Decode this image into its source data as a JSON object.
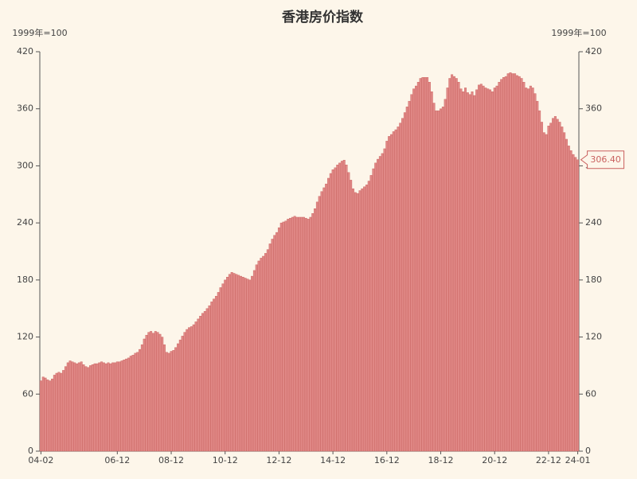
{
  "chart_data": {
    "type": "bar",
    "title": "香港房价指数",
    "y_label": "1999年=100",
    "y2_label": "1999年=100",
    "categories": [
      "04-02",
      null,
      null,
      null,
      null,
      null,
      null,
      null,
      null,
      null,
      null,
      null,
      null,
      null,
      null,
      null,
      null,
      null,
      null,
      null,
      null,
      null,
      null,
      null,
      null,
      null,
      null,
      null,
      null,
      null,
      null,
      null,
      null,
      null,
      "06-12",
      null,
      null,
      null,
      null,
      null,
      null,
      null,
      null,
      null,
      null,
      null,
      null,
      null,
      null,
      null,
      null,
      null,
      null,
      null,
      null,
      null,
      null,
      null,
      "08-12",
      null,
      null,
      null,
      null,
      null,
      null,
      null,
      null,
      null,
      null,
      null,
      null,
      null,
      null,
      null,
      null,
      null,
      null,
      null,
      null,
      null,
      null,
      null,
      "10-12",
      null,
      null,
      null,
      null,
      null,
      null,
      null,
      null,
      null,
      null,
      null,
      null,
      null,
      null,
      null,
      null,
      null,
      null,
      null,
      null,
      null,
      null,
      null,
      "12-12",
      null,
      null,
      null,
      null,
      null,
      null,
      null,
      null,
      null,
      null,
      null,
      null,
      null,
      null,
      null,
      null,
      null,
      null,
      null,
      null,
      null,
      null,
      null,
      "14-12",
      null,
      null,
      null,
      null,
      null,
      null,
      null,
      null,
      null,
      null,
      null,
      null,
      null,
      null,
      null,
      null,
      null,
      null,
      null,
      null,
      null,
      null,
      null,
      "16-12",
      null,
      null,
      null,
      null,
      null,
      null,
      null,
      null,
      null,
      null,
      null,
      null,
      null,
      null,
      null,
      null,
      null,
      null,
      null,
      null,
      null,
      null,
      null,
      "18-12",
      null,
      null,
      null,
      null,
      null,
      null,
      null,
      null,
      null,
      null,
      null,
      null,
      null,
      null,
      null,
      null,
      null,
      null,
      null,
      null,
      null,
      null,
      null,
      "20-12",
      null,
      null,
      null,
      null,
      null,
      null,
      null,
      null,
      null,
      null,
      null,
      null,
      null,
      null,
      null,
      null,
      null,
      null,
      null,
      null,
      null,
      null,
      null,
      "22-12",
      null,
      null,
      null,
      null,
      null,
      null,
      null,
      null,
      null,
      null,
      null,
      null,
      "24-01"
    ],
    "values": [
      74,
      78,
      77,
      75,
      74,
      76,
      80,
      82,
      83,
      82,
      85,
      89,
      93,
      95,
      94,
      93,
      92,
      93,
      94,
      91,
      89,
      88,
      90,
      91,
      92,
      92,
      93,
      94,
      93,
      92,
      93,
      92,
      93,
      93,
      94,
      94,
      95,
      96,
      97,
      98,
      100,
      101,
      103,
      104,
      107,
      112,
      118,
      122,
      125,
      126,
      124,
      126,
      125,
      123,
      120,
      112,
      104,
      103,
      105,
      106,
      109,
      113,
      117,
      121,
      125,
      128,
      130,
      131,
      133,
      136,
      139,
      142,
      145,
      147,
      150,
      153,
      157,
      160,
      163,
      167,
      172,
      176,
      180,
      183,
      186,
      188,
      187,
      186,
      185,
      184,
      183,
      182,
      181,
      180,
      184,
      190,
      196,
      200,
      203,
      205,
      208,
      212,
      218,
      223,
      227,
      230,
      235,
      240,
      241,
      242,
      244,
      245,
      246,
      247,
      246,
      246,
      246,
      246,
      245,
      244,
      246,
      250,
      255,
      262,
      268,
      273,
      277,
      281,
      287,
      292,
      296,
      298,
      301,
      303,
      305,
      306,
      301,
      293,
      285,
      276,
      272,
      271,
      274,
      276,
      278,
      280,
      284,
      290,
      297,
      303,
      307,
      310,
      313,
      318,
      326,
      331,
      333,
      336,
      338,
      341,
      345,
      350,
      356,
      362,
      368,
      375,
      381,
      384,
      388,
      392,
      393,
      393,
      393,
      388,
      378,
      366,
      358,
      358,
      360,
      362,
      370,
      382,
      392,
      396,
      394,
      392,
      388,
      381,
      378,
      382,
      377,
      375,
      378,
      374,
      380,
      385,
      386,
      384,
      382,
      381,
      380,
      378,
      382,
      384,
      388,
      391,
      393,
      394,
      397,
      398,
      397,
      397,
      395,
      394,
      392,
      388,
      382,
      381,
      384,
      382,
      376,
      368,
      358,
      346,
      335,
      333,
      342,
      345,
      350,
      352,
      349,
      346,
      341,
      335,
      328,
      321,
      316,
      312,
      309,
      306.4
    ],
    "last_label": "306.40",
    "color": "#e08886",
    "edge_color": "#c9605e",
    "ylim": [
      0,
      420
    ],
    "yticks": [
      0,
      60,
      120,
      180,
      240,
      300,
      360,
      420
    ],
    "y2lim": [
      0,
      420
    ],
    "y2ticks": [
      0,
      60,
      120,
      180,
      240,
      300,
      360,
      420
    ]
  }
}
